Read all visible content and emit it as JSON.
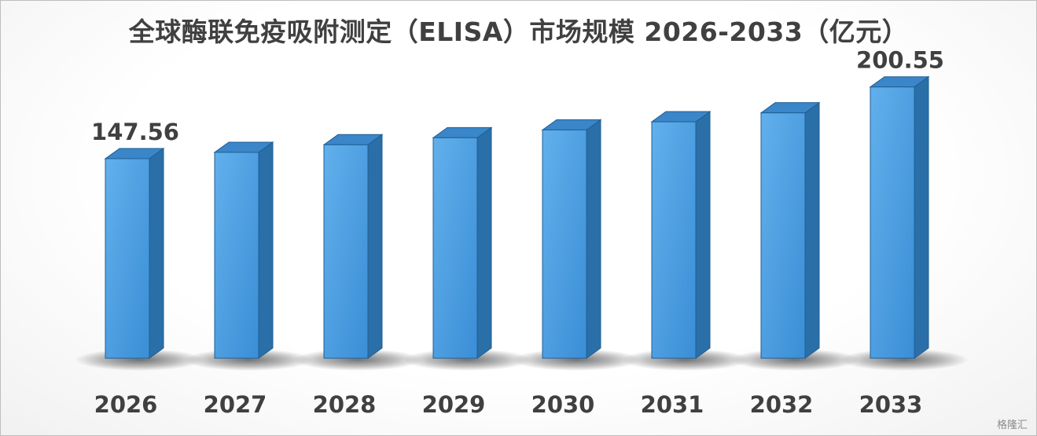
{
  "chart_data": {
    "type": "bar",
    "title": "全球酶联免疫吸附测定（ELISA）市场规模 2026-2033（亿元）",
    "categories": [
      "2026",
      "2027",
      "2028",
      "2029",
      "2030",
      "2031",
      "2032",
      "2033"
    ],
    "values": [
      147.56,
      152.2,
      157.8,
      163.0,
      168.8,
      174.8,
      181.4,
      200.55
    ],
    "data_labels": [
      "147.56",
      "",
      "",
      "",
      "",
      "",
      "",
      "200.55"
    ],
    "ylim": [
      0,
      230
    ],
    "grid": false,
    "legend": "none",
    "colors": {
      "bar_front": "#4a9ee0",
      "bar_side": "#2a6fa8",
      "bar_top": "#3a86c8",
      "bar_edge": "#1f5f95",
      "text": "#404040"
    }
  },
  "watermark": "格隆汇"
}
